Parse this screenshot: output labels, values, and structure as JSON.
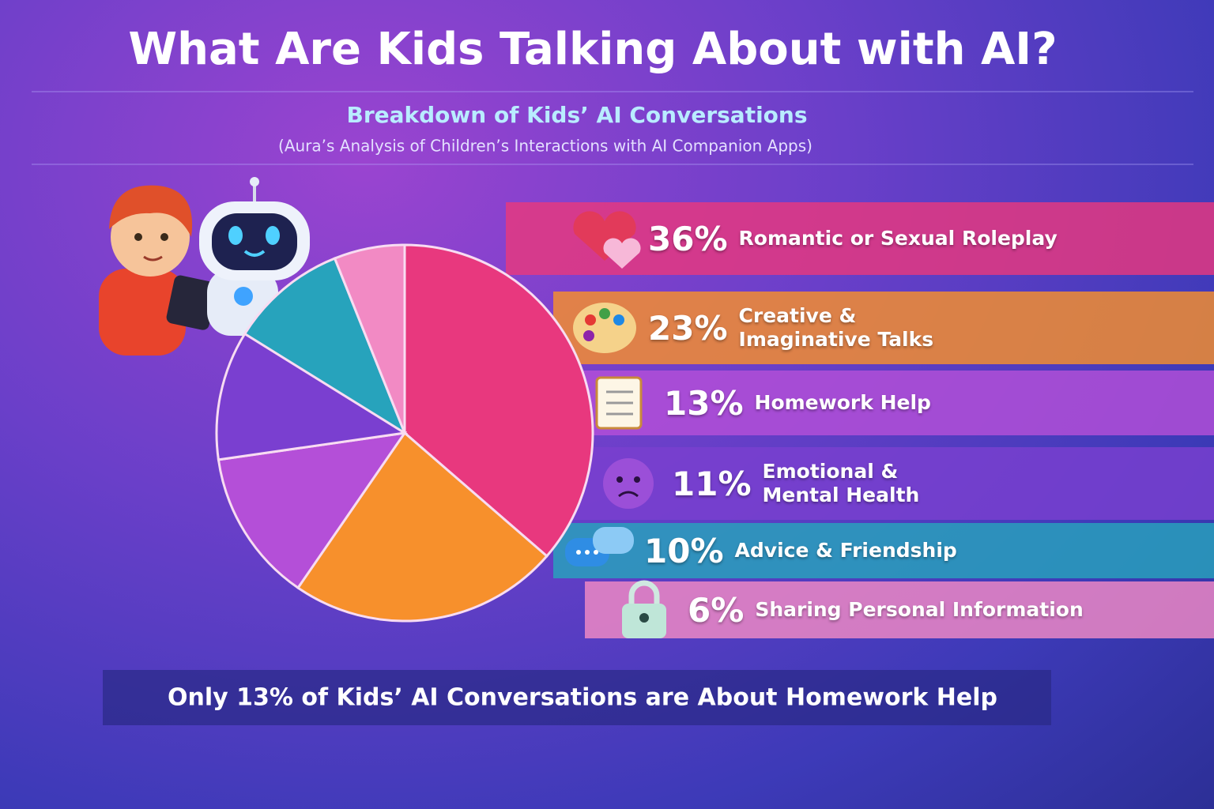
{
  "chart_data": {
    "type": "pie",
    "title": "What Are Kids Talking About with AI?",
    "subtitle": "Breakdown of Kids’ AI Conversations",
    "note": "(Aura’s Analysis of Children’s Interactions with AI Companion Apps)",
    "categories": [
      "Romantic or Sexual Roleplay",
      "Creative & Imaginative Talks",
      "Homework Help",
      "Emotional & Mental Health",
      "Advice & Friendship",
      "Sharing Personal Information"
    ],
    "values": [
      36,
      23,
      13,
      11,
      10,
      6
    ],
    "value_labels": [
      "36%",
      "23%",
      "13%",
      "11%",
      "10%",
      "6%"
    ],
    "colors": [
      "#e8387e",
      "#f7902c",
      "#b44fd8",
      "#7a3fd0",
      "#27a3bc",
      "#f28ac4"
    ],
    "footer": "Only 13% of Kids’ AI Conversations are About Homework Help"
  }
}
